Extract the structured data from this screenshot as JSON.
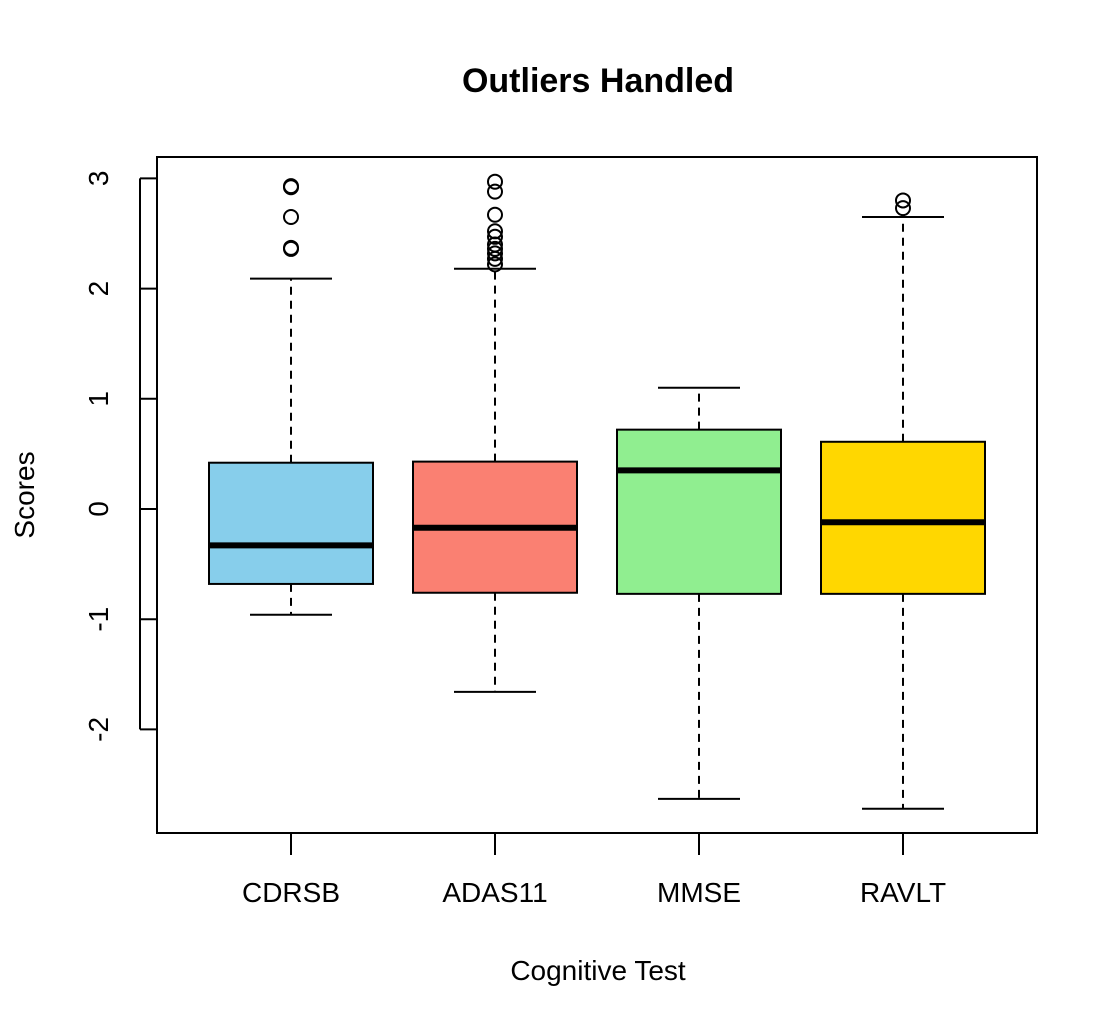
{
  "chart_data": {
    "type": "box",
    "title": "Outliers Handled",
    "xlabel": "Cognitive Test",
    "ylabel": "Scores",
    "ylim": [
      -2.95,
      3.2
    ],
    "yticks": [
      3,
      2,
      1,
      0,
      -1,
      -2
    ],
    "ytick_labels": [
      "3",
      "2",
      "1",
      "0",
      "-1",
      "-2"
    ],
    "grid": false,
    "categories": [
      "CDRSB",
      "ADAS11",
      "MMSE",
      "RAVLT"
    ],
    "boxes": [
      {
        "category": "CDRSB",
        "color": "#87CEEB",
        "whisker_low": -0.96,
        "q1": -0.68,
        "median": -0.33,
        "q3": 0.42,
        "whisker_high": 2.09,
        "outliers": [
          2.36,
          2.37,
          2.65,
          2.92,
          2.93
        ]
      },
      {
        "category": "ADAS11",
        "color": "#FA8072",
        "whisker_low": -1.66,
        "q1": -0.76,
        "median": -0.17,
        "q3": 0.43,
        "whisker_high": 2.18,
        "outliers": [
          2.22,
          2.27,
          2.32,
          2.36,
          2.4,
          2.47,
          2.52,
          2.67,
          2.88,
          2.97
        ]
      },
      {
        "category": "MMSE",
        "color": "#90EE90",
        "whisker_low": -2.63,
        "q1": -0.77,
        "median": 0.35,
        "q3": 0.72,
        "whisker_high": 1.1,
        "outliers": []
      },
      {
        "category": "RAVLT",
        "color": "#FFD700",
        "whisker_low": -2.72,
        "q1": -0.77,
        "median": -0.12,
        "q3": 0.61,
        "whisker_high": 2.65,
        "outliers": [
          2.73,
          2.8
        ]
      }
    ]
  }
}
